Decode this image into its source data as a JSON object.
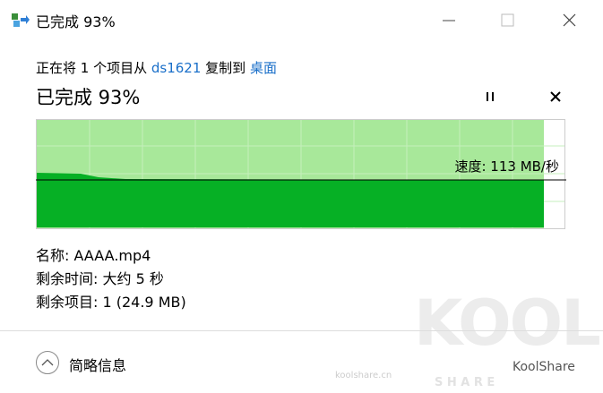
{
  "window": {
    "title": "已完成 93%"
  },
  "copy": {
    "prefix": "正在将 1 个项目从",
    "source": "ds1621",
    "middle": "复制到",
    "destination": "桌面"
  },
  "status": "已完成 93%",
  "speed": "速度: 113 MB/秒",
  "details": [
    "名称: AAAA.mp4",
    "剩余时间: 大约 5 秒",
    "剩余项目: 1 (24.9 MB)"
  ],
  "footer": {
    "toggle": "简略信息"
  },
  "watermark": {
    "logo": "KOOL",
    "logo_sub": "S H A R E",
    "site": "koolshare.cn",
    "account": "KoolShare"
  }
}
